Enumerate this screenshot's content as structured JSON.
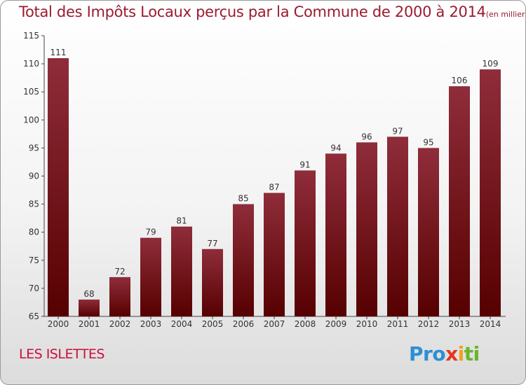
{
  "page": {
    "title": "Total des Impôts Locaux perçus par la Commune de 2000 à 2014",
    "unit": "(en milliers d'€)",
    "commune": "LES ISLETTES",
    "logo": {
      "p1": "Pro",
      "p2": "x",
      "p3": "i",
      "p4": "ti"
    }
  },
  "colors": {
    "bar_top": "#8f2d3a",
    "bar_bottom": "#560000",
    "title": "#9b1b30",
    "commune": "#c8103e"
  },
  "chart_data": {
    "type": "bar",
    "title": "Total des Impôts Locaux perçus par la Commune de 2000 à 2014",
    "ylabel": "en milliers d'€",
    "xlabel": "",
    "categories": [
      "2000",
      "2001",
      "2002",
      "2003",
      "2004",
      "2005",
      "2006",
      "2007",
      "2008",
      "2009",
      "2010",
      "2011",
      "2012",
      "2013",
      "2014"
    ],
    "values": [
      111,
      68,
      72,
      79,
      81,
      77,
      85,
      87,
      91,
      94,
      96,
      97,
      95,
      106,
      109
    ],
    "ylim": [
      65,
      115
    ],
    "yticks": [
      65,
      70,
      75,
      80,
      85,
      90,
      95,
      100,
      105,
      110,
      115
    ],
    "grid": false,
    "data_labels": true
  }
}
